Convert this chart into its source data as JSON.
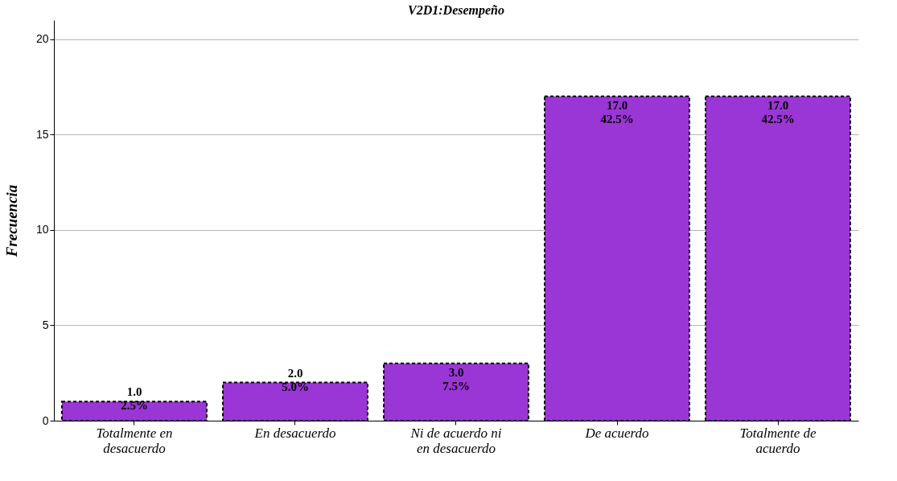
{
  "chart_data": {
    "type": "bar",
    "title": "V2D1:Desempeño",
    "ylabel": "Frecuencia",
    "categories": [
      "Totalmente en desacuerdo",
      "En desacuerdo",
      "Ni de acuerdo ni en desacuerdo",
      "De acuerdo",
      "Totalmente de acuerdo"
    ],
    "values": [
      1,
      2,
      3,
      17,
      17
    ],
    "value_labels": [
      "1.0\n2.5%",
      "2.0\n5.0%",
      "3.0\n7.5%",
      "17.0\n42.5%",
      "17.0\n42.5%"
    ],
    "color": "#9b36d6",
    "ylim": [
      0,
      21
    ],
    "yticks": [
      0,
      5,
      10,
      15,
      20
    ],
    "grid": "y"
  }
}
